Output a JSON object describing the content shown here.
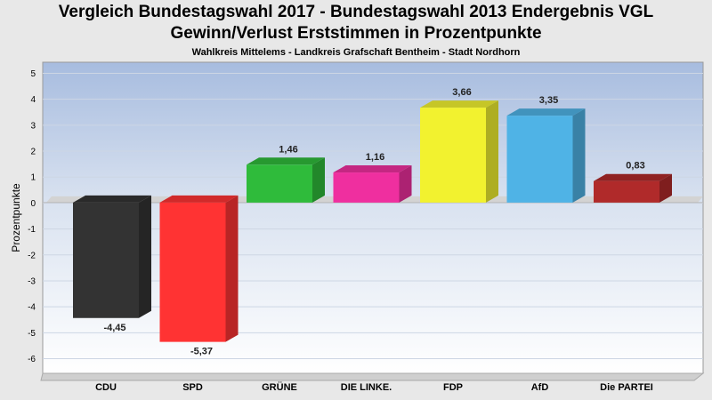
{
  "header": {
    "title_line1": "Vergleich Bundestagswahl 2017 - Bundestagswahl 2013 Endergebnis VGL",
    "title_line2": "Gewinn/Verlust Erststimmen in Prozentpunkte",
    "subtitle": "Wahlkreis Mittelems - Landkreis Grafschaft Bentheim - Stadt Nordhorn"
  },
  "chart_data": {
    "type": "bar",
    "title": "Vergleich Bundestagswahl 2017 - Bundestagswahl 2013 Endergebnis VGL Gewinn/Verlust Erststimmen in Prozentpunkte",
    "subtitle": "Wahlkreis Mittelems - Landkreis Grafschaft Bentheim - Stadt Nordhorn",
    "xlabel": "",
    "ylabel": "Prozentpunkte",
    "ylim": [
      -6,
      5
    ],
    "yticks": [
      "5",
      "4",
      "3",
      "2",
      "1",
      "0",
      "-1",
      "-2",
      "-3",
      "-4",
      "-5",
      "-6"
    ],
    "grid": true,
    "categories": [
      "CDU",
      "SPD",
      "GRÜNE",
      "DIE LINKE.",
      "FDP",
      "AfD",
      "Die PARTEI"
    ],
    "values": [
      -4.45,
      -5.37,
      1.46,
      1.16,
      3.66,
      3.35,
      0.83
    ],
    "value_labels": [
      "-4,45",
      "-5,37",
      "1,46",
      "1,16",
      "3,66",
      "3,35",
      "0,83"
    ],
    "colors": [
      "#333333",
      "#ff3333",
      "#2fbb3b",
      "#ef2f9f",
      "#f2f22f",
      "#4fb3e6",
      "#b02a2a"
    ]
  }
}
